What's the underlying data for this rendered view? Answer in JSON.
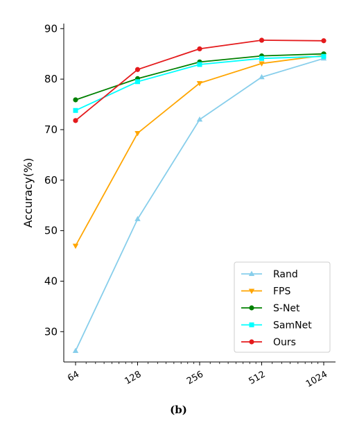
{
  "chart_data": {
    "type": "line",
    "ylabel": "Accuracy(%)",
    "ylim": [
      24,
      91
    ],
    "yticks": [
      30,
      40,
      50,
      60,
      70,
      80,
      90
    ],
    "x": [
      "64",
      "128",
      "256",
      "512",
      "1024"
    ],
    "x_scale": "log2",
    "grid": false,
    "legend_position": "bottom-right",
    "series": [
      {
        "name": "Rand",
        "color": "#87ceeb",
        "marker": "triangle-up",
        "values": [
          26.2,
          52.3,
          72.0,
          80.4,
          84.1
        ]
      },
      {
        "name": "FPS",
        "color": "#ffa500",
        "marker": "triangle-down",
        "values": [
          47.0,
          69.3,
          79.2,
          83.1,
          84.7
        ]
      },
      {
        "name": "S-Net",
        "color": "#008000",
        "marker": "circle",
        "values": [
          75.9,
          80.1,
          83.4,
          84.6,
          85.0
        ]
      },
      {
        "name": "SamNet",
        "color": "#00ffff",
        "marker": "square",
        "values": [
          73.8,
          79.5,
          82.9,
          84.1,
          84.5
        ]
      },
      {
        "name": "Ours",
        "color": "#e41a1c",
        "marker": "circle",
        "values": [
          71.8,
          81.9,
          86.0,
          87.7,
          87.6
        ]
      }
    ]
  },
  "caption": "(b)"
}
